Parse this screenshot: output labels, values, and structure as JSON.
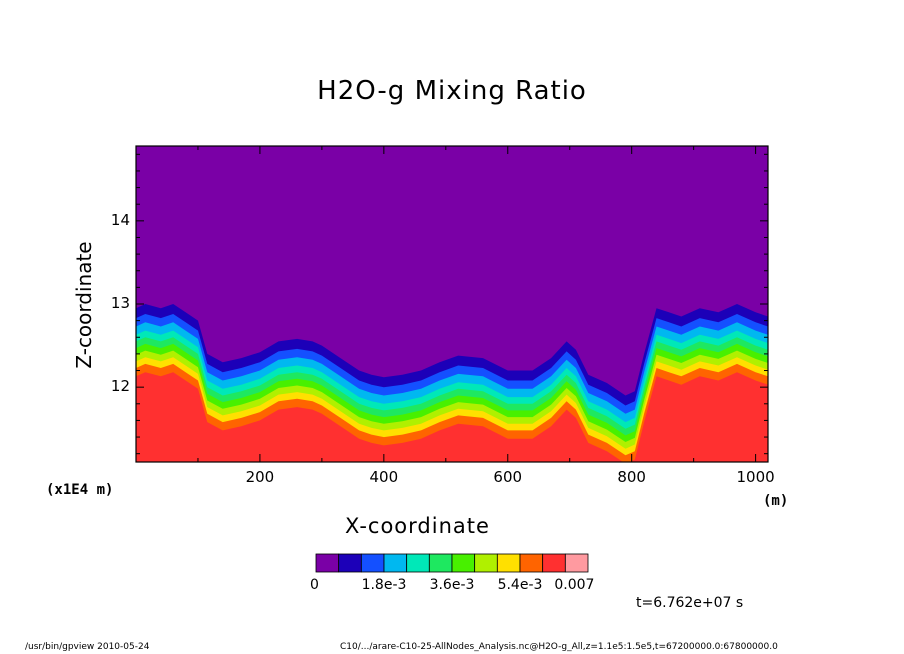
{
  "chart_data": {
    "type": "heatmap",
    "title": "H2O-g Mixing Ratio",
    "xlabel": "X-coordinate",
    "ylabel": "Z-coordinate",
    "x_unit": "(m)",
    "y_unit": "(x1E4 m)",
    "xlim": [
      0,
      1020
    ],
    "ylim": [
      11.1,
      14.9
    ],
    "x_ticks": [
      "200",
      "400",
      "600",
      "800",
      "1000"
    ],
    "y_ticks": [
      "12",
      "13",
      "14"
    ],
    "x_tick_values": [
      200,
      400,
      600,
      800,
      1000
    ],
    "y_tick_values": [
      12,
      13,
      14
    ],
    "grid": false,
    "background_color": "#7a00a6",
    "colorbar": {
      "colors": [
        "#7a00a6",
        "#1c00b8",
        "#1450ff",
        "#00b8f0",
        "#00e8b8",
        "#1ee860",
        "#48f000",
        "#b0f000",
        "#ffe000",
        "#ff6400",
        "#ff3030",
        "#ff9aa0"
      ],
      "labels": [
        "0",
        "1.8e-3",
        "3.6e-3",
        "5.4e-3",
        "0.007"
      ]
    },
    "layer_boundary_profile": {
      "x": [
        0,
        15,
        40,
        60,
        80,
        100,
        115,
        140,
        170,
        200,
        230,
        260,
        285,
        300,
        330,
        360,
        380,
        400,
        430,
        460,
        490,
        520,
        560,
        600,
        640,
        670,
        695,
        710,
        730,
        760,
        790,
        805,
        820,
        840,
        860,
        880,
        910,
        940,
        970,
        1000,
        1020
      ],
      "z": [
        12.95,
        13.0,
        12.95,
        13.0,
        12.9,
        12.8,
        12.4,
        12.3,
        12.35,
        12.42,
        12.55,
        12.58,
        12.55,
        12.5,
        12.35,
        12.2,
        12.15,
        12.12,
        12.15,
        12.2,
        12.3,
        12.38,
        12.35,
        12.2,
        12.2,
        12.35,
        12.55,
        12.45,
        12.15,
        12.05,
        11.9,
        11.95,
        12.4,
        12.95,
        12.9,
        12.85,
        12.95,
        12.9,
        13.0,
        12.9,
        12.85
      ]
    }
  },
  "time_label": "t=6.762e+07 s",
  "footer_left": "/usr/bin/gpview   2010-05-24",
  "footer_right": "C10/.../arare-C10-25-AllNodes_Analysis.nc@H2O-g_All,z=1.1e5:1.5e5,t=67200000.0:67800000.0"
}
